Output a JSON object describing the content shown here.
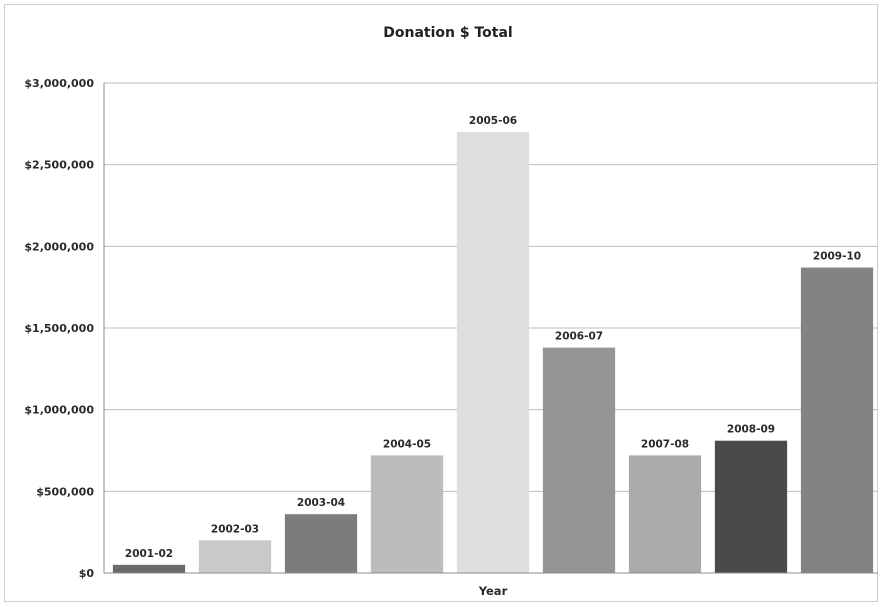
{
  "chart_data": {
    "type": "bar",
    "title": "Donation $ Total",
    "xlabel": "Year",
    "ylabel": "",
    "categories": [
      "2001-02",
      "2002-03",
      "2003-04",
      "2004-05",
      "2005-06",
      "2006-07",
      "2007-08",
      "2008-09",
      "2009-10"
    ],
    "values": [
      50000,
      200000,
      360000,
      720000,
      2700000,
      1380000,
      720000,
      810000,
      1870000
    ],
    "ylim": [
      0,
      3000000
    ],
    "y_ticks": [
      0,
      500000,
      1000000,
      1500000,
      2000000,
      2500000,
      3000000
    ],
    "y_tick_labels": [
      "$0",
      "$500,000",
      "$1,000,000",
      "$1,500,000",
      "$2,000,000",
      "$2,500,000",
      "$3,000,000"
    ],
    "bar_colors": [
      "#6b6b6b",
      "#c9c9c9",
      "#7c7c7c",
      "#bcbcbc",
      "#dedede",
      "#959595",
      "#aaaaaa",
      "#4a4a4a",
      "#838383"
    ],
    "data_labels": "category name above each bar",
    "grid": true,
    "legend": "none"
  }
}
